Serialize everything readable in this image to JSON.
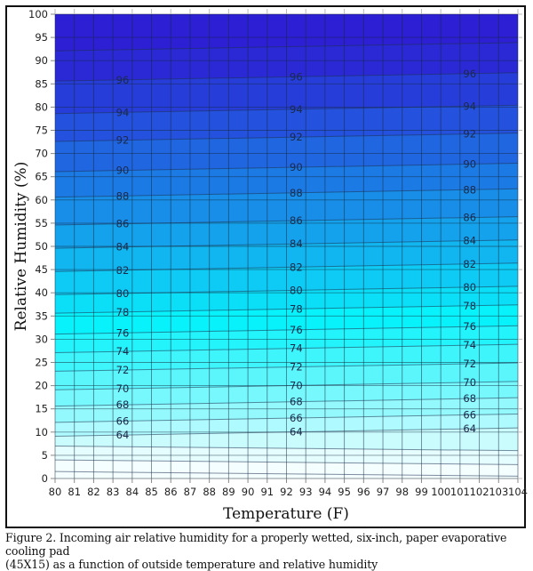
{
  "chart_data": {
    "type": "heatmap",
    "subtype": "filled-contour",
    "title": "",
    "xlabel": "Temperature (F)",
    "ylabel": "Relative Humidity (%)",
    "xlim": [
      80,
      104
    ],
    "ylim": [
      0,
      100
    ],
    "x_ticks": [
      "80",
      "81",
      "82",
      "83",
      "84",
      "85",
      "86",
      "87",
      "88",
      "89",
      "90",
      "91",
      "92",
      "93",
      "94",
      "95",
      "96",
      "97",
      "98",
      "99",
      "100",
      "101",
      "102",
      "103",
      "104"
    ],
    "y_ticks": [
      "0",
      "5",
      "10",
      "15",
      "20",
      "25",
      "30",
      "35",
      "40",
      "45",
      "50",
      "55",
      "60",
      "65",
      "70",
      "75",
      "80",
      "85",
      "90",
      "95",
      "100"
    ],
    "grid": true,
    "legend": null,
    "z_label": "Incoming air relative humidity (%)",
    "contour_levels": [
      64,
      66,
      68,
      70,
      72,
      74,
      76,
      78,
      80,
      82,
      84,
      86,
      88,
      90,
      92,
      94,
      96
    ],
    "contour_label_columns_x": [
      83.5,
      92.5,
      101.5
    ],
    "contour_lines": [
      {
        "level": 96,
        "rh_at_label": 86.5
      },
      {
        "level": 94,
        "rh_at_label": 79.5
      },
      {
        "level": 92,
        "rh_at_label": 73.5
      },
      {
        "level": 90,
        "rh_at_label": 67
      },
      {
        "level": 88,
        "rh_at_label": 61.5
      },
      {
        "level": 86,
        "rh_at_label": 55.5
      },
      {
        "level": 84,
        "rh_at_label": 50.5
      },
      {
        "level": 82,
        "rh_at_label": 45.5
      },
      {
        "level": 80,
        "rh_at_label": 40.5
      },
      {
        "level": 78,
        "rh_at_label": 36.5
      },
      {
        "level": 76,
        "rh_at_label": 32
      },
      {
        "level": 74,
        "rh_at_label": 28
      },
      {
        "level": 72,
        "rh_at_label": 24
      },
      {
        "level": 70,
        "rh_at_label": 20
      },
      {
        "level": 68,
        "rh_at_label": 16.5
      },
      {
        "level": 66,
        "rh_at_label": 13
      },
      {
        "level": 64,
        "rh_at_label": 10
      }
    ],
    "color_scale": {
      "low": "#f4feff",
      "mid": "#06f2fb",
      "high": "#2d1fd3"
    }
  },
  "figure": {
    "caption_line1": "Figure 2.  Incoming air relative humidity for a properly wetted, six-inch, paper evaporative cooling pad",
    "caption_line2": "(45X15) as a function of outside temperature and relative humidity"
  }
}
